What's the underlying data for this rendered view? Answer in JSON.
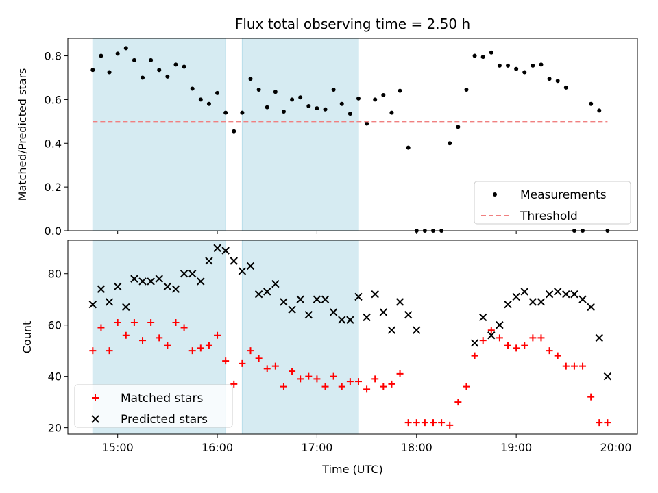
{
  "chart_data": [
    {
      "type": "scatter",
      "title": "Flux total observing time = 2.50 h",
      "xlabel": "",
      "ylabel": "Matched/Predicted stars",
      "xlim": [
        "14:30",
        "20:13"
      ],
      "ylim": [
        0,
        0.88
      ],
      "xticks": [
        "15:00",
        "16:00",
        "17:00",
        "18:00",
        "19:00",
        "20:00"
      ],
      "yticks": [
        "0.0",
        "0.2",
        "0.4",
        "0.6",
        "0.8"
      ],
      "legend_position": "lower-right",
      "shaded_intervals": [
        [
          "14:45",
          "16:05"
        ],
        [
          "16:15",
          "17:25"
        ]
      ],
      "series": [
        {
          "name": "Measurements",
          "marker": "dot",
          "color": "#000000",
          "points": [
            [
              "14:45",
              0.735
            ],
            [
              "14:50",
              0.8
            ],
            [
              "14:55",
              0.725
            ],
            [
              "15:00",
              0.81
            ],
            [
              "15:05",
              0.835
            ],
            [
              "15:10",
              0.78
            ],
            [
              "15:15",
              0.7
            ],
            [
              "15:20",
              0.78
            ],
            [
              "15:25",
              0.735
            ],
            [
              "15:30",
              0.705
            ],
            [
              "15:35",
              0.76
            ],
            [
              "15:40",
              0.75
            ],
            [
              "15:45",
              0.65
            ],
            [
              "15:50",
              0.6
            ],
            [
              "15:55",
              0.58
            ],
            [
              "16:00",
              0.63
            ],
            [
              "16:05",
              0.54
            ],
            [
              "16:10",
              0.455
            ],
            [
              "16:15",
              0.54
            ],
            [
              "16:20",
              0.695
            ],
            [
              "16:25",
              0.645
            ],
            [
              "16:30",
              0.565
            ],
            [
              "16:35",
              0.635
            ],
            [
              "16:40",
              0.545
            ],
            [
              "16:45",
              0.6
            ],
            [
              "16:50",
              0.61
            ],
            [
              "16:55",
              0.57
            ],
            [
              "17:00",
              0.56
            ],
            [
              "17:05",
              0.555
            ],
            [
              "17:10",
              0.645
            ],
            [
              "17:15",
              0.58
            ],
            [
              "17:20",
              0.535
            ],
            [
              "17:25",
              0.605
            ],
            [
              "17:30",
              0.49
            ],
            [
              "17:35",
              0.6
            ],
            [
              "17:40",
              0.62
            ],
            [
              "17:45",
              0.54
            ],
            [
              "17:50",
              0.64
            ],
            [
              "17:55",
              0.38
            ],
            [
              "18:00",
              0.0
            ],
            [
              "18:05",
              0.0
            ],
            [
              "18:10",
              0.0
            ],
            [
              "18:15",
              0.0
            ],
            [
              "18:20",
              0.4
            ],
            [
              "18:25",
              0.475
            ],
            [
              "18:30",
              0.645
            ],
            [
              "18:35",
              0.8
            ],
            [
              "18:40",
              0.795
            ],
            [
              "18:45",
              0.815
            ],
            [
              "18:50",
              0.755
            ],
            [
              "18:55",
              0.755
            ],
            [
              "19:00",
              0.74
            ],
            [
              "19:05",
              0.725
            ],
            [
              "19:10",
              0.755
            ],
            [
              "19:15",
              0.76
            ],
            [
              "19:20",
              0.695
            ],
            [
              "19:25",
              0.685
            ],
            [
              "19:30",
              0.655
            ],
            [
              "19:35",
              0.0
            ],
            [
              "19:40",
              0.0
            ],
            [
              "19:45",
              0.58
            ],
            [
              "19:50",
              0.55
            ],
            [
              "19:55",
              0.0
            ]
          ]
        },
        {
          "name": "Threshold",
          "marker": "dashed-line",
          "color": "#f08080",
          "points": [
            [
              "14:45",
              0.5
            ],
            [
              "19:55",
              0.5
            ]
          ]
        }
      ]
    },
    {
      "type": "scatter",
      "title": "",
      "xlabel": "Time (UTC)",
      "ylabel": "Count",
      "xlim": [
        "14:30",
        "20:13"
      ],
      "ylim": [
        17.5,
        93
      ],
      "xticks": [
        "15:00",
        "16:00",
        "17:00",
        "18:00",
        "19:00",
        "20:00"
      ],
      "yticks": [
        "20",
        "40",
        "60",
        "80"
      ],
      "legend_position": "lower-left",
      "shaded_intervals": [
        [
          "14:45",
          "16:05"
        ],
        [
          "16:15",
          "17:25"
        ]
      ],
      "series": [
        {
          "name": "Matched stars",
          "marker": "plus",
          "color": "#ff0000",
          "points": [
            [
              "14:45",
              50
            ],
            [
              "14:50",
              59
            ],
            [
              "14:55",
              50
            ],
            [
              "15:00",
              61
            ],
            [
              "15:05",
              56
            ],
            [
              "15:10",
              61
            ],
            [
              "15:15",
              54
            ],
            [
              "15:20",
              61
            ],
            [
              "15:25",
              55
            ],
            [
              "15:30",
              52
            ],
            [
              "15:35",
              61
            ],
            [
              "15:40",
              59
            ],
            [
              "15:45",
              50
            ],
            [
              "15:50",
              51
            ],
            [
              "15:55",
              52
            ],
            [
              "16:00",
              56
            ],
            [
              "16:05",
              46
            ],
            [
              "16:10",
              37
            ],
            [
              "16:15",
              45
            ],
            [
              "16:20",
              50
            ],
            [
              "16:25",
              47
            ],
            [
              "16:30",
              43
            ],
            [
              "16:35",
              44
            ],
            [
              "16:40",
              36
            ],
            [
              "16:45",
              42
            ],
            [
              "16:50",
              39
            ],
            [
              "16:55",
              40
            ],
            [
              "17:00",
              39
            ],
            [
              "17:05",
              36
            ],
            [
              "17:10",
              40
            ],
            [
              "17:15",
              36
            ],
            [
              "17:20",
              38
            ],
            [
              "17:25",
              38
            ],
            [
              "17:30",
              35
            ],
            [
              "17:35",
              39
            ],
            [
              "17:40",
              36
            ],
            [
              "17:45",
              37
            ],
            [
              "17:50",
              41
            ],
            [
              "17:55",
              22
            ],
            [
              "18:00",
              22
            ],
            [
              "18:05",
              22
            ],
            [
              "18:10",
              22
            ],
            [
              "18:15",
              22
            ],
            [
              "18:20",
              21
            ],
            [
              "18:25",
              30
            ],
            [
              "18:30",
              36
            ],
            [
              "18:35",
              48
            ],
            [
              "18:40",
              54
            ],
            [
              "18:45",
              58
            ],
            [
              "18:50",
              55
            ],
            [
              "18:55",
              52
            ],
            [
              "19:00",
              51
            ],
            [
              "19:05",
              52
            ],
            [
              "19:10",
              55
            ],
            [
              "19:15",
              55
            ],
            [
              "19:20",
              50
            ],
            [
              "19:25",
              48
            ],
            [
              "19:30",
              44
            ],
            [
              "19:35",
              44
            ],
            [
              "19:40",
              44
            ],
            [
              "19:45",
              32
            ],
            [
              "19:50",
              22
            ],
            [
              "19:55",
              22
            ]
          ]
        },
        {
          "name": "Predicted stars",
          "marker": "cross",
          "color": "#000000",
          "points": [
            [
              "14:45",
              68
            ],
            [
              "14:50",
              74
            ],
            [
              "14:55",
              69
            ],
            [
              "15:00",
              75
            ],
            [
              "15:05",
              67
            ],
            [
              "15:10",
              78
            ],
            [
              "15:15",
              77
            ],
            [
              "15:20",
              77
            ],
            [
              "15:25",
              78
            ],
            [
              "15:30",
              75
            ],
            [
              "15:35",
              74
            ],
            [
              "15:40",
              80
            ],
            [
              "15:45",
              80
            ],
            [
              "15:50",
              77
            ],
            [
              "15:55",
              85
            ],
            [
              "16:00",
              90
            ],
            [
              "16:05",
              89
            ],
            [
              "16:10",
              85
            ],
            [
              "16:15",
              81
            ],
            [
              "16:20",
              83
            ],
            [
              "16:25",
              72
            ],
            [
              "16:30",
              73
            ],
            [
              "16:35",
              76
            ],
            [
              "16:40",
              69
            ],
            [
              "16:45",
              66
            ],
            [
              "16:50",
              70
            ],
            [
              "16:55",
              64
            ],
            [
              "17:00",
              70
            ],
            [
              "17:05",
              70
            ],
            [
              "17:10",
              65
            ],
            [
              "17:15",
              62
            ],
            [
              "17:20",
              62
            ],
            [
              "17:25",
              71
            ],
            [
              "17:30",
              63
            ],
            [
              "17:35",
              72
            ],
            [
              "17:40",
              65
            ],
            [
              "17:45",
              58
            ],
            [
              "17:50",
              69
            ],
            [
              "17:55",
              64
            ],
            [
              "18:00",
              58
            ],
            [
              "18:35",
              53
            ],
            [
              "18:40",
              63
            ],
            [
              "18:45",
              56
            ],
            [
              "18:50",
              60
            ],
            [
              "18:55",
              68
            ],
            [
              "19:00",
              71
            ],
            [
              "19:05",
              73
            ],
            [
              "19:10",
              69
            ],
            [
              "19:15",
              69
            ],
            [
              "19:20",
              72
            ],
            [
              "19:25",
              73
            ],
            [
              "19:30",
              72
            ],
            [
              "19:35",
              72
            ],
            [
              "19:40",
              70
            ],
            [
              "19:45",
              67
            ],
            [
              "19:50",
              55
            ],
            [
              "19:55",
              40
            ]
          ]
        }
      ]
    }
  ]
}
